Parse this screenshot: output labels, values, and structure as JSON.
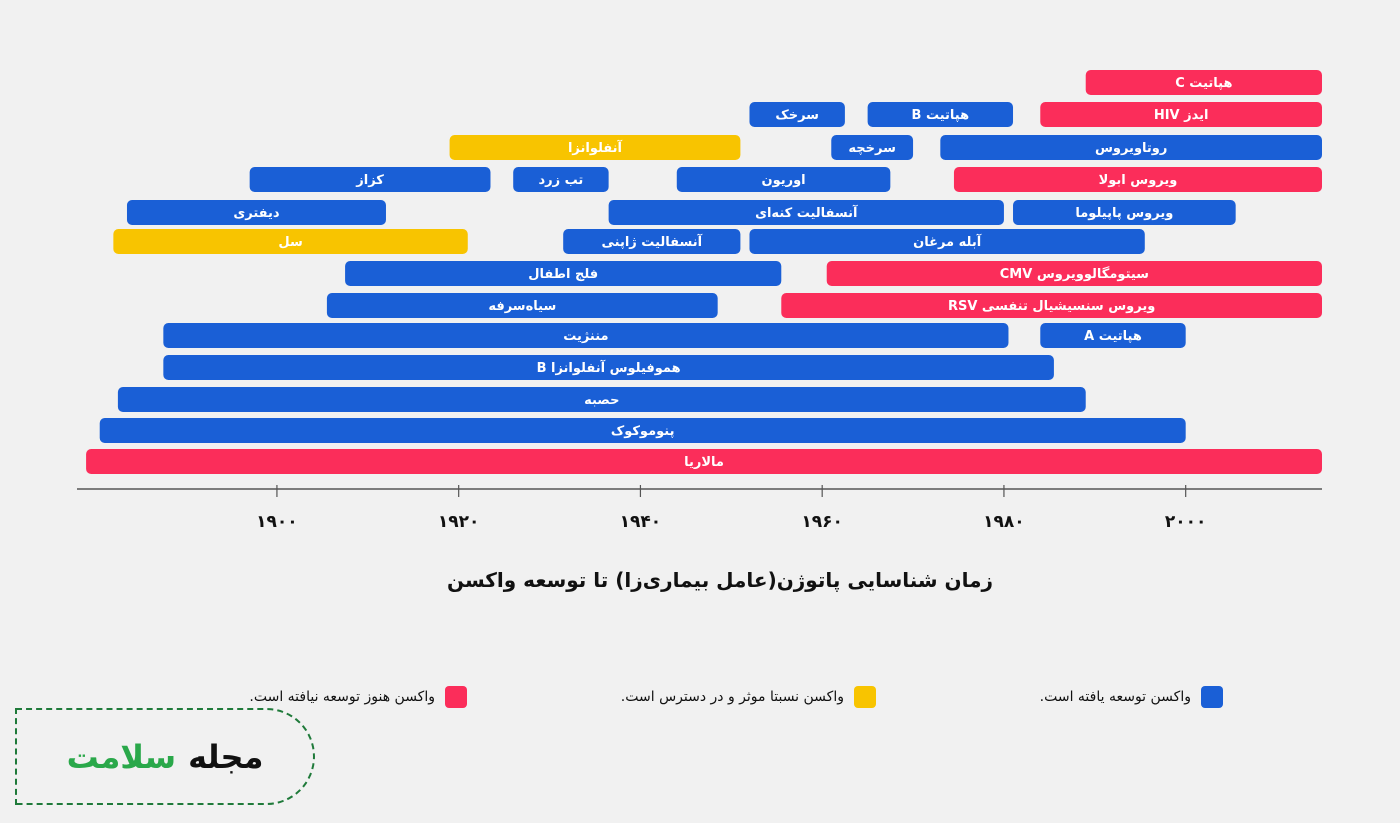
{
  "colors": {
    "developed": "#1a5fd6",
    "partial": "#f8c400",
    "none": "#fb2d5a",
    "axis": "#555555"
  },
  "chart_data": {
    "type": "gantt",
    "title": "زمان شناسایی پاتوژن(عامل بیماری‌زا) تا توسعه واکسن",
    "xlim": [
      1878,
      2015
    ],
    "x_ticks": [
      1900,
      1920,
      1940,
      1960,
      1980,
      2000
    ],
    "x_tick_labels": [
      "۱۹۰۰",
      "۱۹۲۰",
      "۱۹۴۰",
      "۱۹۶۰",
      "۱۹۸۰",
      "۲۰۰۰"
    ],
    "grid": false,
    "legend_placement": "bottom",
    "rows": [
      [
        {
          "label": "هپاتیت C",
          "start": 1989,
          "end": 2015,
          "status": "none"
        }
      ],
      [
        {
          "label": "سرخک",
          "start": 1952,
          "end": 1962.5,
          "status": "developed"
        },
        {
          "label": "هپاتیت B",
          "start": 1965,
          "end": 1981,
          "status": "developed"
        },
        {
          "label": "ایدز  HIV",
          "start": 1984,
          "end": 2015,
          "status": "none"
        }
      ],
      [
        {
          "label": "آنفلوانزا",
          "start": 1919,
          "end": 1951,
          "status": "partial"
        },
        {
          "label": "سرخچه",
          "start": 1961,
          "end": 1970,
          "status": "developed"
        },
        {
          "label": "روتاویروس",
          "start": 1973,
          "end": 2015,
          "status": "developed"
        }
      ],
      [
        {
          "label": "کزاز",
          "start": 1897,
          "end": 1923.5,
          "status": "developed"
        },
        {
          "label": "تب زرد",
          "start": 1926,
          "end": 1936.5,
          "status": "developed"
        },
        {
          "label": "اوریون",
          "start": 1944,
          "end": 1967.5,
          "status": "developed"
        },
        {
          "label": "ویروس ابولا",
          "start": 1974.5,
          "end": 2015,
          "status": "none"
        }
      ],
      [
        {
          "label": "دیفتری",
          "start": 1883.5,
          "end": 1912,
          "status": "developed"
        },
        {
          "label": "آنسفالیت کنه‌ای",
          "start": 1936.5,
          "end": 1980,
          "status": "developed"
        },
        {
          "label": "ویروس پاپیلوما",
          "start": 1981,
          "end": 2005.5,
          "status": "developed"
        }
      ],
      [
        {
          "label": "سل",
          "start": 1882,
          "end": 1921,
          "status": "partial"
        },
        {
          "label": "آنسفالیت ژاپنی",
          "start": 1931.5,
          "end": 1951,
          "status": "developed"
        },
        {
          "label": "آبله مرغان",
          "start": 1952,
          "end": 1995.5,
          "status": "developed"
        }
      ],
      [
        {
          "label": "فلج اطفال",
          "start": 1907.5,
          "end": 1955.5,
          "status": "developed"
        },
        {
          "label": "سیتومگالوویروس CMV",
          "start": 1960.5,
          "end": 2015,
          "status": "none"
        }
      ],
      [
        {
          "label": "سیاه‌سرفه",
          "start": 1905.5,
          "end": 1948.5,
          "status": "developed"
        },
        {
          "label": "ویروس سنسیشیال تنفسی RSV",
          "start": 1955.5,
          "end": 2015,
          "status": "none"
        }
      ],
      [
        {
          "label": "مننژیت",
          "start": 1887.5,
          "end": 1980.5,
          "status": "developed"
        },
        {
          "label": "هپاتیت  A",
          "start": 1984,
          "end": 2000,
          "status": "developed"
        }
      ],
      [
        {
          "label": "هموفیلوس آنفلوانزا B",
          "start": 1887.5,
          "end": 1985.5,
          "status": "developed"
        }
      ],
      [
        {
          "label": "حصبه",
          "start": 1882.5,
          "end": 1989,
          "status": "developed"
        }
      ],
      [
        {
          "label": "پنوموکوک",
          "start": 1880.5,
          "end": 2000,
          "status": "developed"
        }
      ],
      [
        {
          "label": "مالاریا",
          "start": 1879,
          "end": 2015,
          "status": "none"
        }
      ]
    ],
    "legend": [
      {
        "status": "developed",
        "label": "واکسن توسعه یافته است."
      },
      {
        "status": "partial",
        "label": "واکسن نسبتا موثر و در دسترس است."
      },
      {
        "status": "none",
        "label": "واکسن هنوز توسعه نیافته است."
      }
    ]
  },
  "logo": {
    "word1": "مجله",
    "word2": "سلامت",
    "word2_color": "#2aa84a"
  }
}
